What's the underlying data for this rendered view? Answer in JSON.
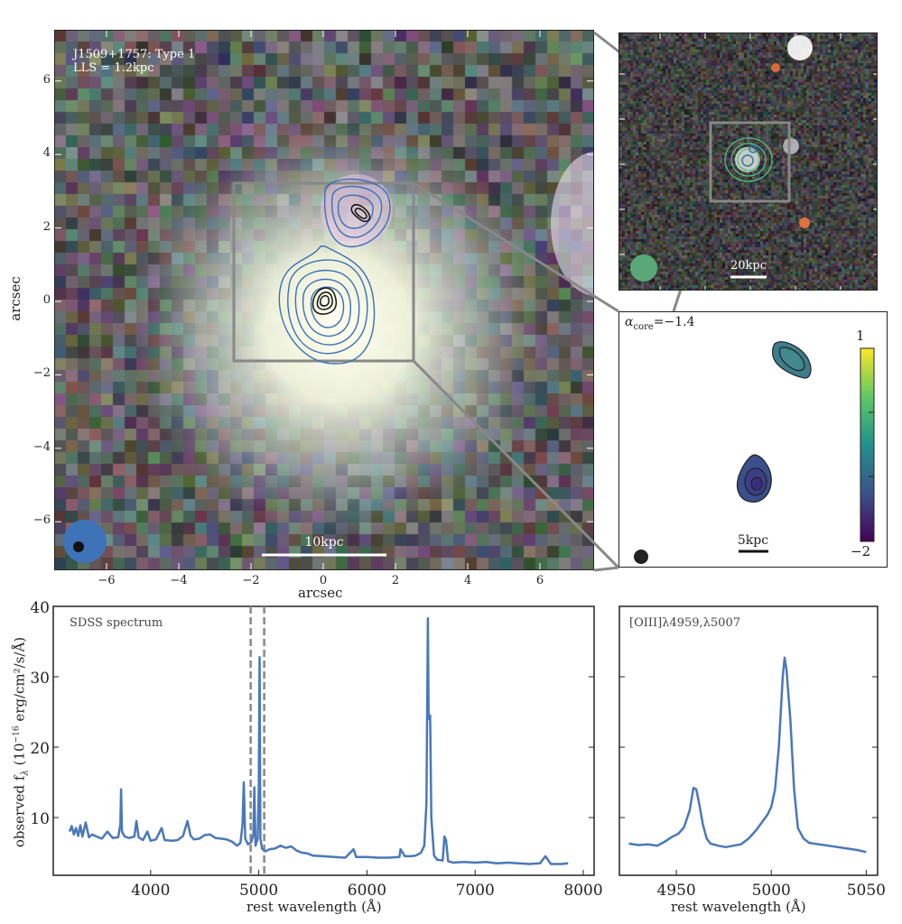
{
  "main_image": {
    "label_line1": "J1509+1757: Type 1",
    "label_line2": "LLS = 1.2kpc",
    "scalebar": "10kpc",
    "xlabel": "arcsec",
    "ylabel": "arcsec",
    "xticks": [
      "−6",
      "−4",
      "−2",
      "0",
      "2",
      "4",
      "6"
    ],
    "yticks": [
      "6",
      "4",
      "2",
      "0",
      "−2",
      "−4",
      "−6"
    ],
    "contour_color": "#3b6fb6",
    "beam_color": "#3f73b8"
  },
  "inset_optical": {
    "scalebar": "20kpc",
    "contour_color": "#4fbf88",
    "beam_color": "#5aa77a"
  },
  "inset_spectral_index": {
    "label": "α",
    "label_sub": "core",
    "label_value": "=−1.4",
    "scalebar": "5kpc",
    "colorbar_max": "1",
    "colorbar_min": "−2",
    "colormap": "viridis"
  },
  "chart_data": [
    {
      "type": "line",
      "title": "SDSS spectrum",
      "xlabel": "rest wavelength (Å)",
      "ylabel": "observed f_λ (10^-16 erg/cm²/s/Å)",
      "ylabel_text": "observed f",
      "ylabel_sub": "λ",
      "ylabel_units": " (10",
      "ylabel_exp": "−16",
      "ylabel_units2": " erg/cm²/s/Å)",
      "xlim": [
        3100,
        8100
      ],
      "ylim": [
        1.8,
        40
      ],
      "xticks": [
        "4000",
        "5000",
        "6000",
        "7000",
        "8000"
      ],
      "yticks": [
        "10",
        "20",
        "30",
        "40"
      ],
      "color": "#4a78b8",
      "dashed_lines_x": [
        4925,
        5050
      ],
      "x": [
        3250,
        3270,
        3290,
        3310,
        3330,
        3350,
        3370,
        3400,
        3430,
        3460,
        3500,
        3550,
        3600,
        3650,
        3700,
        3720,
        3727,
        3735,
        3760,
        3800,
        3850,
        3869,
        3890,
        3930,
        3970,
        4000,
        4050,
        4102,
        4130,
        4200,
        4250,
        4300,
        4340,
        4370,
        4400,
        4450,
        4500,
        4550,
        4600,
        4650,
        4700,
        4750,
        4800,
        4830,
        4850,
        4861,
        4875,
        4900,
        4930,
        4950,
        4959,
        4970,
        4990,
        5000,
        5007,
        5015,
        5030,
        5060,
        5100,
        5150,
        5200,
        5250,
        5300,
        5350,
        5400,
        5450,
        5500,
        5600,
        5700,
        5800,
        5876,
        5900,
        6000,
        6100,
        6200,
        6300,
        6310,
        6350,
        6400,
        6450,
        6500,
        6530,
        6550,
        6563,
        6570,
        6584,
        6595,
        6620,
        6650,
        6700,
        6716,
        6731,
        6750,
        6800,
        6900,
        7000,
        7100,
        7200,
        7300,
        7400,
        7500,
        7600,
        7650,
        7700,
        7800,
        7860
      ],
      "y": [
        8.0,
        8.8,
        7.6,
        8.5,
        7.4,
        8.9,
        7.3,
        9.3,
        7.2,
        7.6,
        7.3,
        7.0,
        8.0,
        7.1,
        7.2,
        9.0,
        14.0,
        8.0,
        7.3,
        7.1,
        7.3,
        9.5,
        7.2,
        6.8,
        8.0,
        6.7,
        6.9,
        8.5,
        6.8,
        6.7,
        6.8,
        7.4,
        9.5,
        7.4,
        6.9,
        7.0,
        7.5,
        7.6,
        7.1,
        7.0,
        6.9,
        6.6,
        6.0,
        6.4,
        9.0,
        15.0,
        7.0,
        6.2,
        6.5,
        7.5,
        14.3,
        6.0,
        7.0,
        14.0,
        32.8,
        7.0,
        5.6,
        5.2,
        5.5,
        5.6,
        6.0,
        5.7,
        5.9,
        5.3,
        5.0,
        4.9,
        4.6,
        4.5,
        4.4,
        4.3,
        5.5,
        4.4,
        4.4,
        4.3,
        4.3,
        4.4,
        5.5,
        4.5,
        4.5,
        4.6,
        5.0,
        6.0,
        12.0,
        38.3,
        24.0,
        24.5,
        10.0,
        4.6,
        4.0,
        3.9,
        7.3,
        6.8,
        3.8,
        3.6,
        3.7,
        3.6,
        3.7,
        3.5,
        3.6,
        3.5,
        3.4,
        3.5,
        4.5,
        3.4,
        3.4,
        3.5
      ]
    },
    {
      "type": "line",
      "title": "[OIII]λ4959,λ5007",
      "xlabel": "rest wavelength (Å)",
      "xlim": [
        4920,
        5056
      ],
      "ylim": [
        1.8,
        40
      ],
      "xticks": [
        "4950",
        "5000",
        "5050"
      ],
      "color": "#4a78b8",
      "x": [
        4925,
        4930,
        4935,
        4940,
        4944,
        4948,
        4951,
        4954,
        4957,
        4959,
        4960.5,
        4962,
        4964,
        4966,
        4968,
        4972,
        4976,
        4980,
        4984,
        4988,
        4992,
        4995,
        4998,
        5000,
        5002,
        5004,
        5006,
        5007,
        5008,
        5010,
        5012,
        5014,
        5017,
        5020,
        5025,
        5030,
        5035,
        5040,
        5045,
        5050
      ],
      "y": [
        6.3,
        6.1,
        6.2,
        6.0,
        6.6,
        7.3,
        7.7,
        8.6,
        11.0,
        14.2,
        14.0,
        12.0,
        9.0,
        7.0,
        6.3,
        6.0,
        5.8,
        6.0,
        6.2,
        7.0,
        8.2,
        9.3,
        10.4,
        11.5,
        14.0,
        20.0,
        30.0,
        32.7,
        31.0,
        24.0,
        14.0,
        8.5,
        7.0,
        6.4,
        6.2,
        6.0,
        5.8,
        5.6,
        5.4,
        5.1
      ]
    }
  ]
}
